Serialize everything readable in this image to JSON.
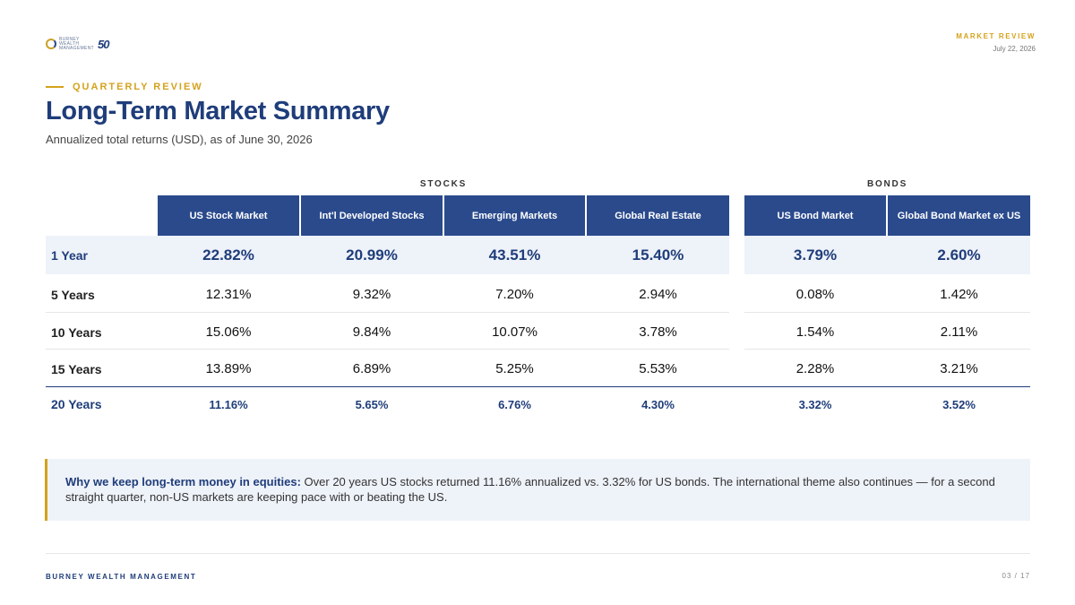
{
  "brand": {
    "logo_line1": "BURNEY",
    "logo_line2": "WEALTH",
    "logo_line3": "MANAGEMENT",
    "logo_anniv": "50",
    "accent": "#d4a21c",
    "primary": "#2a4a8c",
    "heading": "#1f3d7a"
  },
  "header": {
    "tag": "MARKET REVIEW",
    "date": "July 22, 2026"
  },
  "eyebrow": "QUARTERLY REVIEW",
  "title": "Long-Term Market Summary",
  "subtitle": "Annualized total returns (USD), as of June 30, 2026",
  "table": {
    "groups": [
      "STOCKS",
      "BONDS"
    ],
    "columns": [
      "US Stock Market",
      "Int'l Developed Stocks",
      "Emerging Markets",
      "Global Real Estate",
      "US Bond Market",
      "Global Bond Market ex US"
    ],
    "rows": [
      {
        "label": "1 Year",
        "values": [
          "22.82%",
          "20.99%",
          "43.51%",
          "15.40%",
          "3.79%",
          "2.60%"
        ]
      },
      {
        "label": "5 Years",
        "values": [
          "12.31%",
          "9.32%",
          "7.20%",
          "2.94%",
          "0.08%",
          "1.42%"
        ]
      },
      {
        "label": "10 Years",
        "values": [
          "15.06%",
          "9.84%",
          "10.07%",
          "3.78%",
          "1.54%",
          "2.11%"
        ]
      },
      {
        "label": "15 Years",
        "values": [
          "13.89%",
          "6.89%",
          "5.25%",
          "5.53%",
          "2.28%",
          "3.21%"
        ]
      },
      {
        "label": "20 Years",
        "values": [
          "11.16%",
          "5.65%",
          "6.76%",
          "4.30%",
          "3.32%",
          "3.52%"
        ]
      }
    ]
  },
  "callout": {
    "lead": "Why we keep long-term money in equities:",
    "body": " Over 20 years US stocks returned 11.16% annualized vs. 3.32% for US bonds. The international theme also continues — for a second straight quarter, non-US markets are keeping pace with or beating the US."
  },
  "footer": {
    "company": "BURNEY WEALTH MANAGEMENT",
    "page": "03 / 17"
  }
}
